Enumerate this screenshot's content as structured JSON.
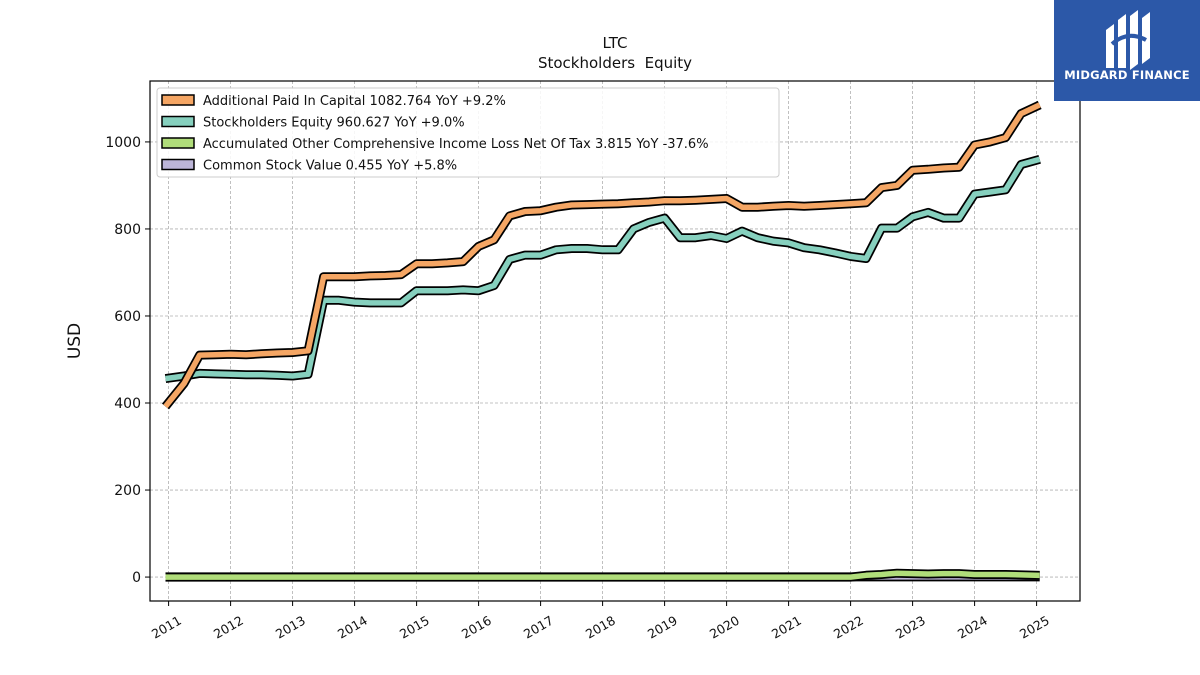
{
  "logo": {
    "text": "MIDGARD FINANCE",
    "bg_color": "#2c58a8"
  },
  "chart_data": {
    "type": "line",
    "title": "LTC",
    "subtitle": "Stockholders  Equity",
    "ylabel": "USD",
    "xlabel": "",
    "xlim": [
      2010.7,
      2025.7
    ],
    "ylim": [
      -55,
      1140
    ],
    "yticks": [
      0,
      200,
      400,
      600,
      800,
      1000
    ],
    "xticks": [
      "2011",
      "2012",
      "2013",
      "2014",
      "2015",
      "2016",
      "2017",
      "2018",
      "2019",
      "2020",
      "2021",
      "2022",
      "2023",
      "2024",
      "2025"
    ],
    "grid": true,
    "legend_position": "top-left",
    "series": [
      {
        "name": "Additional Paid In Capital",
        "legend_label": "Additional Paid In Capital  1082.764 YoY +9.2%",
        "color": "#f5a664",
        "x": [
          2010.95,
          2011.25,
          2011.5,
          2011.75,
          2012.0,
          2012.25,
          2012.5,
          2012.75,
          2013.0,
          2013.25,
          2013.5,
          2013.75,
          2014.0,
          2014.25,
          2014.5,
          2014.75,
          2015.0,
          2015.25,
          2015.5,
          2015.75,
          2016.0,
          2016.25,
          2016.5,
          2016.75,
          2017.0,
          2017.25,
          2017.5,
          2017.75,
          2018.0,
          2018.25,
          2018.5,
          2018.75,
          2019.0,
          2019.25,
          2019.5,
          2019.75,
          2020.0,
          2020.25,
          2020.5,
          2020.75,
          2021.0,
          2021.25,
          2021.5,
          2021.75,
          2022.0,
          2022.25,
          2022.5,
          2022.75,
          2023.0,
          2023.25,
          2023.5,
          2023.75,
          2024.0,
          2024.25,
          2024.5,
          2024.75,
          2025.05
        ],
        "y": [
          392,
          445,
          510,
          511,
          512,
          511,
          513,
          515,
          516,
          520,
          690,
          690,
          690,
          692,
          693,
          695,
          720,
          720,
          722,
          725,
          760,
          775,
          830,
          840,
          842,
          850,
          855,
          856,
          857,
          858,
          860,
          862,
          865,
          865,
          866,
          868,
          870,
          850,
          850,
          852,
          854,
          852,
          854,
          856,
          858,
          860,
          895,
          900,
          935,
          937,
          940,
          942,
          993,
          1000,
          1010,
          1065,
          1085
        ]
      },
      {
        "name": "Stockholders Equity",
        "legend_label": "Stockholders Equity  960.627 YoY +9.0%",
        "color": "#86d0be",
        "x": [
          2010.95,
          2011.25,
          2011.5,
          2011.75,
          2012.0,
          2012.25,
          2012.5,
          2012.75,
          2013.0,
          2013.25,
          2013.5,
          2013.75,
          2014.0,
          2014.25,
          2014.5,
          2014.75,
          2015.0,
          2015.25,
          2015.5,
          2015.75,
          2016.0,
          2016.25,
          2016.5,
          2016.75,
          2017.0,
          2017.25,
          2017.5,
          2017.75,
          2018.0,
          2018.25,
          2018.5,
          2018.75,
          2019.0,
          2019.25,
          2019.5,
          2019.75,
          2020.0,
          2020.25,
          2020.5,
          2020.75,
          2021.0,
          2021.25,
          2021.5,
          2021.75,
          2022.0,
          2022.25,
          2022.5,
          2022.75,
          2023.0,
          2023.25,
          2023.5,
          2023.75,
          2024.0,
          2024.25,
          2024.5,
          2024.75,
          2025.05
        ],
        "y": [
          456,
          462,
          468,
          467,
          466,
          465,
          465,
          464,
          462,
          466,
          636,
          636,
          632,
          630,
          630,
          630,
          658,
          658,
          658,
          660,
          658,
          670,
          730,
          740,
          740,
          752,
          755,
          755,
          752,
          752,
          800,
          815,
          825,
          780,
          780,
          785,
          778,
          795,
          780,
          772,
          768,
          757,
          752,
          745,
          737,
          732,
          802,
          802,
          828,
          838,
          825,
          825,
          880,
          885,
          890,
          948,
          960
        ]
      },
      {
        "name": "Accumulated Other Comprehensive Income Loss Net Of Tax",
        "legend_label": "Accumulated Other Comprehensive Income Loss Net Of Tax  3.815 YoY -37.6%",
        "color": "#b0dd7a",
        "x": [
          2010.95,
          2013.0,
          2016.0,
          2019.0,
          2022.0,
          2022.25,
          2022.5,
          2022.75,
          2023.0,
          2023.25,
          2023.5,
          2023.75,
          2024.0,
          2024.25,
          2024.5,
          2024.75,
          2025.05
        ],
        "y": [
          0,
          0,
          0,
          0,
          0,
          4,
          6,
          9,
          8,
          7,
          8,
          8,
          6,
          6,
          6,
          5,
          3.815
        ]
      },
      {
        "name": "Common Stock Value",
        "legend_label": "Common Stock Value  0.455 YoY +5.8%",
        "color": "#bcb5d8",
        "x": [
          2010.95,
          2013.0,
          2016.0,
          2019.0,
          2022.0,
          2025.05
        ],
        "y": [
          0.3,
          0.32,
          0.35,
          0.38,
          0.43,
          0.455
        ]
      }
    ]
  }
}
